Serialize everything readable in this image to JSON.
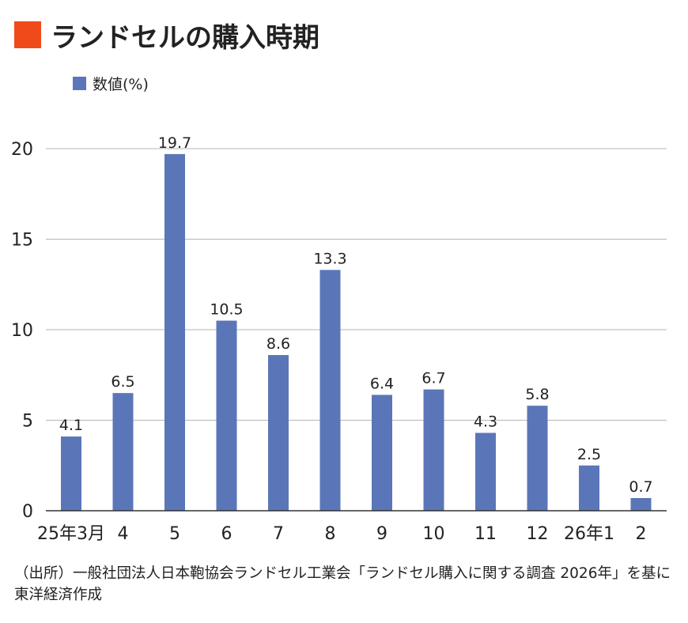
{
  "colors": {
    "accent": "#f04a1a",
    "bar": "#5b76b8",
    "grid": "#b5b5b5",
    "axis": "#333333",
    "text": "#222222"
  },
  "title": "ランドセルの購入時期",
  "source_note": "（出所）一般社団法人日本鞄協会ランドセル工業会「ランドセル購入に関する調査 2026年」を基に東洋経済作成",
  "chart_data": {
    "type": "bar",
    "title": "ランドセルの購入時期",
    "categories": [
      "25年3月",
      "4",
      "5",
      "6",
      "7",
      "8",
      "9",
      "10",
      "11",
      "12",
      "26年1",
      "2"
    ],
    "series": [
      {
        "name": "数値(%)",
        "values": [
          4.1,
          6.5,
          19.7,
          10.5,
          8.6,
          13.3,
          6.4,
          6.7,
          4.3,
          5.8,
          2.5,
          0.7
        ]
      }
    ],
    "ylim": [
      0,
      20
    ],
    "yticks": [
      0,
      5,
      10,
      15,
      20
    ],
    "grid": true,
    "legend_position": "top-left",
    "xlabel": "",
    "ylabel": ""
  }
}
